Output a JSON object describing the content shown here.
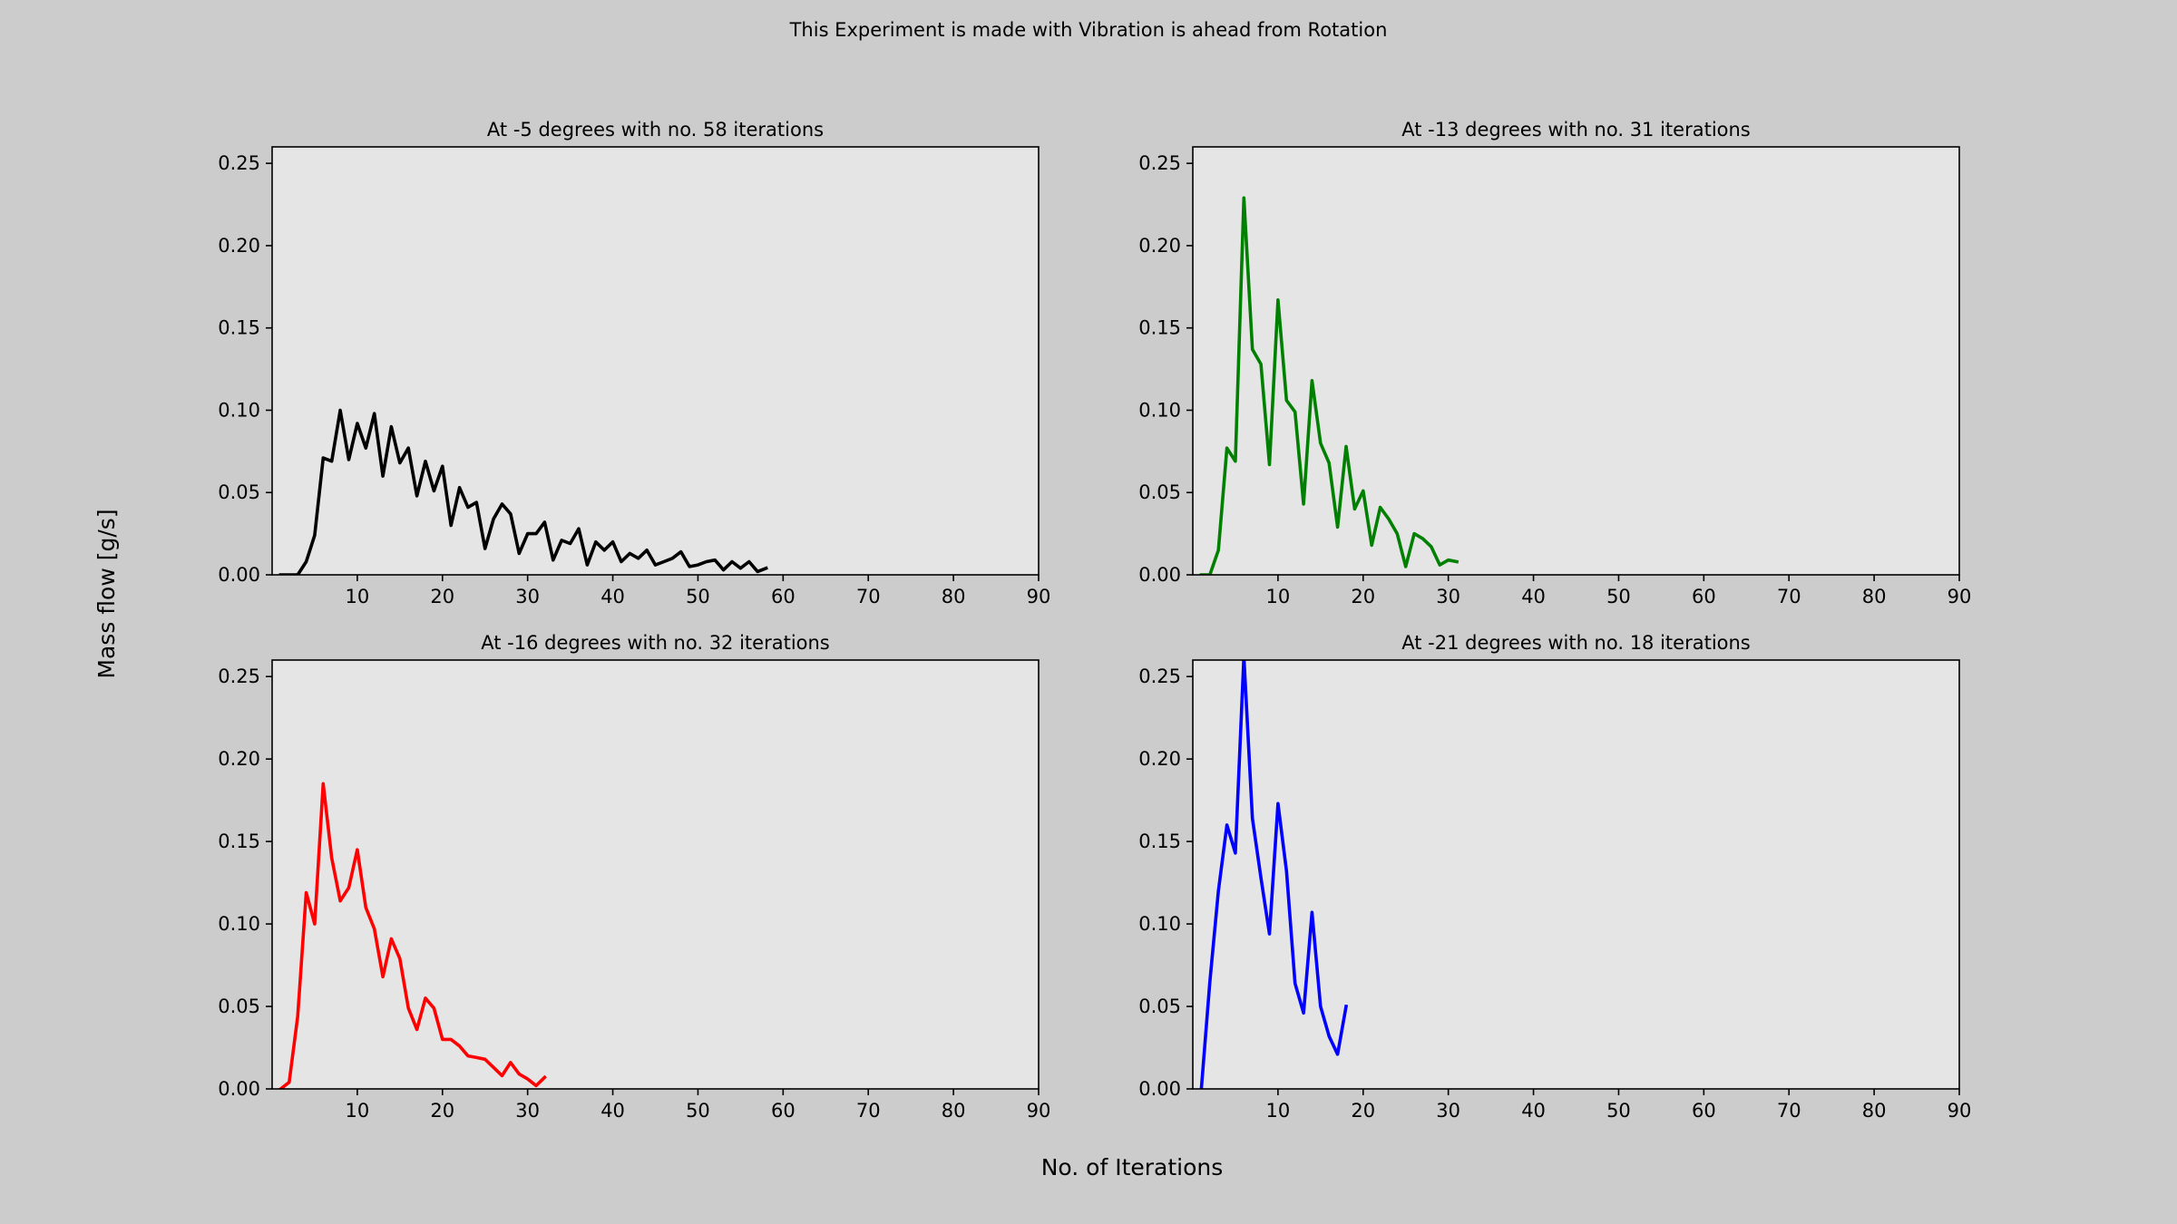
{
  "figure": {
    "suptitle": "This Experiment is made with Vibration is ahead from Rotation",
    "xlabel": "No. of Iterations",
    "ylabel": "Mass flow [g/s]",
    "background_color": "#cccccc",
    "axes_background_color": "#e5e5e5"
  },
  "chart_data": [
    {
      "type": "line",
      "title": "At -5 degrees with no. 58 iterations",
      "xlim": [
        0,
        90
      ],
      "ylim": [
        0,
        0.26
      ],
      "x_ticks": [
        10,
        20,
        30,
        40,
        50,
        60,
        70,
        80,
        90
      ],
      "y_ticks": [
        0.0,
        0.05,
        0.1,
        0.15,
        0.2,
        0.25
      ],
      "color": "#000000",
      "x": [
        1,
        2,
        3,
        4,
        5,
        6,
        7,
        8,
        9,
        10,
        11,
        12,
        13,
        14,
        15,
        16,
        17,
        18,
        19,
        20,
        21,
        22,
        23,
        24,
        25,
        26,
        27,
        28,
        29,
        30,
        31,
        32,
        33,
        34,
        35,
        36,
        37,
        38,
        39,
        40,
        41,
        42,
        43,
        44,
        45,
        46,
        47,
        48,
        49,
        50,
        51,
        52,
        53,
        54,
        55,
        56,
        57,
        58
      ],
      "y": [
        0,
        0,
        0,
        0.008,
        0.024,
        0.071,
        0.069,
        0.1,
        0.07,
        0.092,
        0.077,
        0.098,
        0.06,
        0.09,
        0.068,
        0.077,
        0.048,
        0.069,
        0.051,
        0.066,
        0.03,
        0.053,
        0.041,
        0.044,
        0.016,
        0.034,
        0.043,
        0.037,
        0.013,
        0.025,
        0.025,
        0.032,
        0.009,
        0.021,
        0.019,
        0.028,
        0.006,
        0.02,
        0.015,
        0.02,
        0.008,
        0.013,
        0.01,
        0.015,
        0.006,
        0.008,
        0.01,
        0.014,
        0.005,
        0.006,
        0.008,
        0.009,
        0.003,
        0.008,
        0.004,
        0.008,
        0.002,
        0.004
      ]
    },
    {
      "type": "line",
      "title": "At -13 degrees with no. 31 iterations",
      "xlim": [
        0,
        90
      ],
      "ylim": [
        0,
        0.26
      ],
      "x_ticks": [
        10,
        20,
        30,
        40,
        50,
        60,
        70,
        80,
        90
      ],
      "y_ticks": [
        0.0,
        0.05,
        0.1,
        0.15,
        0.2,
        0.25
      ],
      "color": "#008000",
      "x": [
        1,
        2,
        3,
        4,
        5,
        6,
        7,
        8,
        9,
        10,
        11,
        12,
        13,
        14,
        15,
        16,
        17,
        18,
        19,
        20,
        21,
        22,
        23,
        24,
        25,
        26,
        27,
        28,
        29,
        30,
        31
      ],
      "y": [
        0,
        0,
        0.015,
        0.077,
        0.069,
        0.229,
        0.137,
        0.128,
        0.067,
        0.167,
        0.106,
        0.099,
        0.043,
        0.118,
        0.08,
        0.068,
        0.029,
        0.078,
        0.04,
        0.051,
        0.018,
        0.041,
        0.034,
        0.025,
        0.005,
        0.025,
        0.022,
        0.017,
        0.006,
        0.009,
        0.008
      ]
    },
    {
      "type": "line",
      "title": "At -16 degrees with no. 32 iterations",
      "xlim": [
        0,
        90
      ],
      "ylim": [
        0,
        0.26
      ],
      "x_ticks": [
        10,
        20,
        30,
        40,
        50,
        60,
        70,
        80,
        90
      ],
      "y_ticks": [
        0.0,
        0.05,
        0.1,
        0.15,
        0.2,
        0.25
      ],
      "color": "#ff0000",
      "x": [
        1,
        2,
        3,
        4,
        5,
        6,
        7,
        8,
        9,
        10,
        11,
        12,
        13,
        14,
        15,
        16,
        17,
        18,
        19,
        20,
        21,
        22,
        23,
        24,
        25,
        26,
        27,
        28,
        29,
        30,
        31,
        32
      ],
      "y": [
        0,
        0.004,
        0.044,
        0.119,
        0.1,
        0.185,
        0.14,
        0.114,
        0.122,
        0.145,
        0.11,
        0.097,
        0.068,
        0.091,
        0.079,
        0.049,
        0.036,
        0.055,
        0.049,
        0.03,
        0.03,
        0.026,
        0.02,
        0.019,
        0.018,
        0.013,
        0.008,
        0.016,
        0.009,
        0.006,
        0.002,
        0.007
      ]
    },
    {
      "type": "line",
      "title": "At -21 degrees with no. 18 iterations",
      "xlim": [
        0,
        90
      ],
      "ylim": [
        0,
        0.26
      ],
      "x_ticks": [
        10,
        20,
        30,
        40,
        50,
        60,
        70,
        80,
        90
      ],
      "y_ticks": [
        0.0,
        0.05,
        0.1,
        0.15,
        0.2,
        0.25
      ],
      "color": "#0000ff",
      "x": [
        1,
        2,
        3,
        4,
        5,
        6,
        7,
        8,
        9,
        10,
        11,
        12,
        13,
        14,
        15,
        16,
        17,
        18
      ],
      "y": [
        0,
        0.065,
        0.12,
        0.16,
        0.143,
        0.262,
        0.164,
        0.128,
        0.094,
        0.173,
        0.132,
        0.064,
        0.046,
        0.107,
        0.05,
        0.032,
        0.021,
        0.05
      ]
    }
  ]
}
